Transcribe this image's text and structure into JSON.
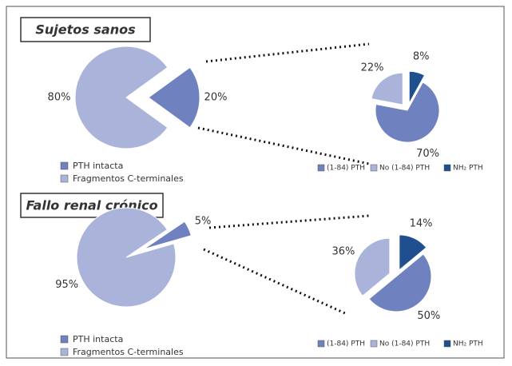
{
  "chart_data": [
    {
      "type": "pie",
      "title": "Sujetos sanos",
      "categories": [
        "PTH intacta",
        "Fragmentos C-terminales"
      ],
      "values": [
        20,
        80
      ],
      "value_labels": [
        "20%",
        "80%"
      ],
      "colors": [
        "#7081c0",
        "#aab4da"
      ]
    },
    {
      "type": "pie",
      "categories": [
        "NH₂ PTH",
        "(1-84) PTH",
        "No (1-84) PTH"
      ],
      "values": [
        8,
        70,
        22
      ],
      "value_labels": [
        "8%",
        "70%",
        "22%"
      ],
      "colors": [
        "#1f4f8f",
        "#7081c0",
        "#aab4da"
      ]
    },
    {
      "type": "pie",
      "title": "Fallo renal crónico",
      "categories": [
        "PTH intacta",
        "Fragmentos C-terminales"
      ],
      "values": [
        5,
        95
      ],
      "value_labels": [
        "5%",
        "95%"
      ],
      "colors": [
        "#7081c0",
        "#aab4da"
      ]
    },
    {
      "type": "pie",
      "categories": [
        "NH₂ PTH",
        "(1-84) PTH",
        "No (1-84) PTH"
      ],
      "values": [
        14,
        50,
        36
      ],
      "value_labels": [
        "14%",
        "50%",
        "36%"
      ],
      "colors": [
        "#1f4f8f",
        "#7081c0",
        "#aab4da"
      ]
    }
  ]
}
